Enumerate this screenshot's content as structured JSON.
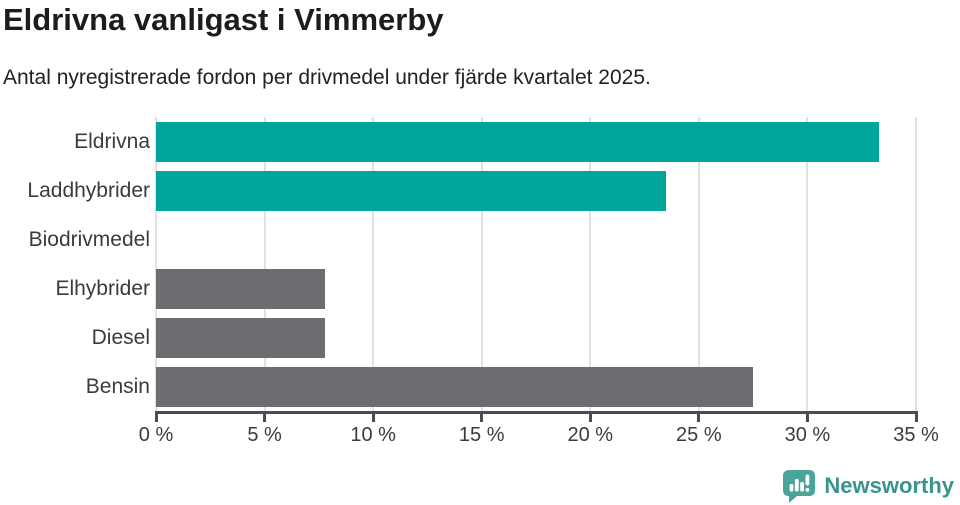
{
  "header": {
    "title": "Eldrivna vanligast i Vimmerby",
    "subtitle": "Antal nyregistrerade fordon per drivmedel under fjärde kvartalet 2025."
  },
  "chart_data": {
    "type": "bar",
    "orientation": "horizontal",
    "title": "Eldrivna vanligast i Vimmerby",
    "subtitle": "Antal nyregistrerade fordon per drivmedel under fjärde kvartalet 2025.",
    "categories": [
      "Eldrivna",
      "Laddhybrider",
      "Biodrivmedel",
      "Elhybrider",
      "Diesel",
      "Bensin"
    ],
    "values": [
      33.3,
      23.5,
      0,
      7.8,
      7.8,
      27.5
    ],
    "unit": "%",
    "xlabel": "",
    "ylabel": "",
    "xlim": [
      0,
      35
    ],
    "x_ticks": [
      0,
      5,
      10,
      15,
      20,
      25,
      30,
      35
    ],
    "x_tick_labels": [
      "0 %",
      "5 %",
      "10 %",
      "15 %",
      "20 %",
      "25 %",
      "30 %",
      "35 %"
    ],
    "bar_colors": [
      "#00a59b",
      "#00a59b",
      "#00a59b",
      "#6c6c71",
      "#6c6c71",
      "#6c6c71"
    ],
    "grid": true,
    "legend": "none"
  },
  "colors": {
    "highlight_teal": "#00a59b",
    "neutral_gray": "#6c6c71",
    "gridline": "#e1e1e1",
    "axis": "#4b4b50",
    "label_text": "#3b3b3b",
    "title_text": "#1c1c1a",
    "logo_teal": "#3a948e",
    "logo_icon_teal": "#4ba49c"
  },
  "footer": {
    "brand": "Newsworthy"
  }
}
